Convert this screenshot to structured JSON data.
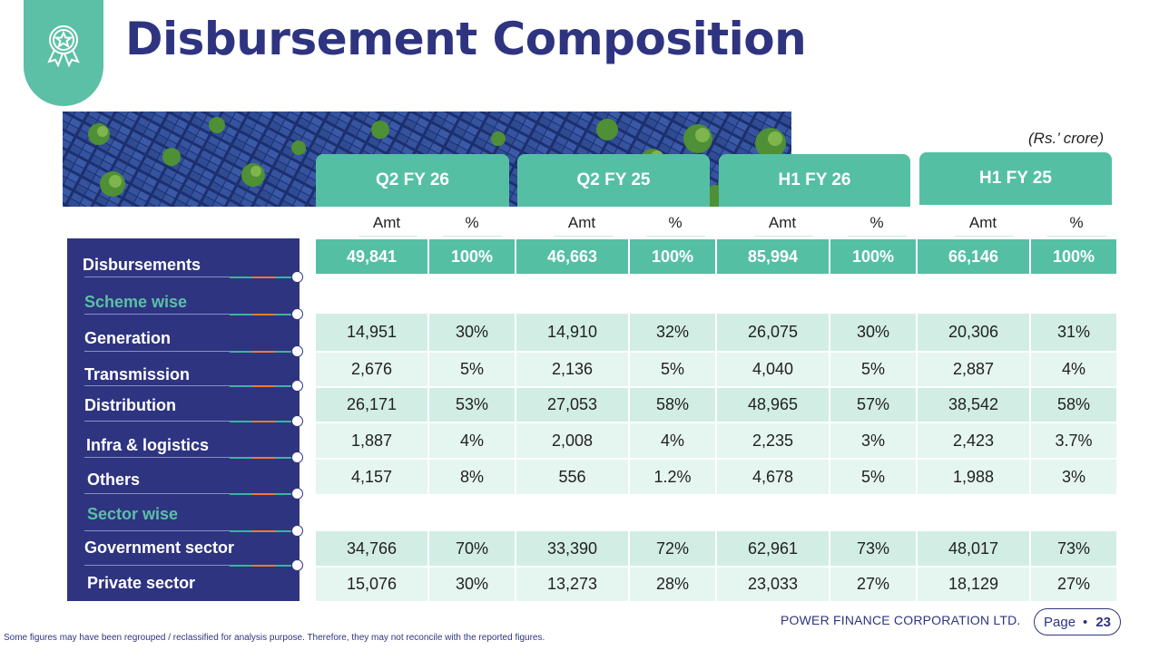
{
  "title": "Disbursement Composition",
  "units": "(Rs.’ crore)",
  "periods": [
    "Q2 FY 26",
    "Q2 FY 25",
    "H1 FY 26",
    "H1 FY 25"
  ],
  "subheaders": {
    "amt": "Amt",
    "pct": "%"
  },
  "rows": {
    "disbursements": {
      "label": "Disbursements",
      "values": [
        "49,841",
        "100%",
        "46,663",
        "100%",
        "85,994",
        "100%",
        "66,146",
        "100%"
      ]
    },
    "scheme_wise": {
      "label": "Scheme wise"
    },
    "generation": {
      "label": "Generation",
      "values": [
        "14,951",
        "30%",
        "14,910",
        "32%",
        "26,075",
        "30%",
        "20,306",
        "31%"
      ]
    },
    "transmission": {
      "label": "Transmission",
      "values": [
        "2,676",
        "5%",
        "2,136",
        "5%",
        "4,040",
        "5%",
        "2,887",
        "4%"
      ]
    },
    "distribution": {
      "label": "Distribution",
      "values": [
        "26,171",
        "53%",
        "27,053",
        "58%",
        "48,965",
        "57%",
        "38,542",
        "58%"
      ]
    },
    "infra": {
      "label": "Infra & logistics",
      "values": [
        "1,887",
        "4%",
        "2,008",
        "4%",
        "2,235",
        "3%",
        "2,423",
        "3.7%"
      ]
    },
    "others": {
      "label": "Others",
      "values": [
        "4,157",
        "8%",
        "556",
        "1.2%",
        "4,678",
        "5%",
        "1,988",
        "3%"
      ]
    },
    "sector_wise": {
      "label": "Sector wise"
    },
    "government": {
      "label": "Government sector",
      "values": [
        "34,766",
        "70%",
        "33,390",
        "72%",
        "62,961",
        "73%",
        "48,017",
        "73%"
      ]
    },
    "private": {
      "label": "Private sector",
      "values": [
        "15,076",
        "30%",
        "13,273",
        "28%",
        "23,033",
        "27%",
        "18,129",
        "27%"
      ]
    }
  },
  "footer": {
    "company": "POWER FINANCE CORPORATION LTD.",
    "page_label": "Page",
    "page_bullet": "•",
    "page_number": "23",
    "note": "Some figures may have been regrouped / reclassified for analysis purpose. Therefore, they may not reconcile with the reported figures."
  },
  "icons": {
    "badge": "award-star-icon"
  },
  "colors": {
    "navy": "#2e3480",
    "teal": "#55bfa4",
    "row_even": "#d2ede4",
    "row_odd": "#e5f5ef",
    "orange": "#f07c2e"
  }
}
